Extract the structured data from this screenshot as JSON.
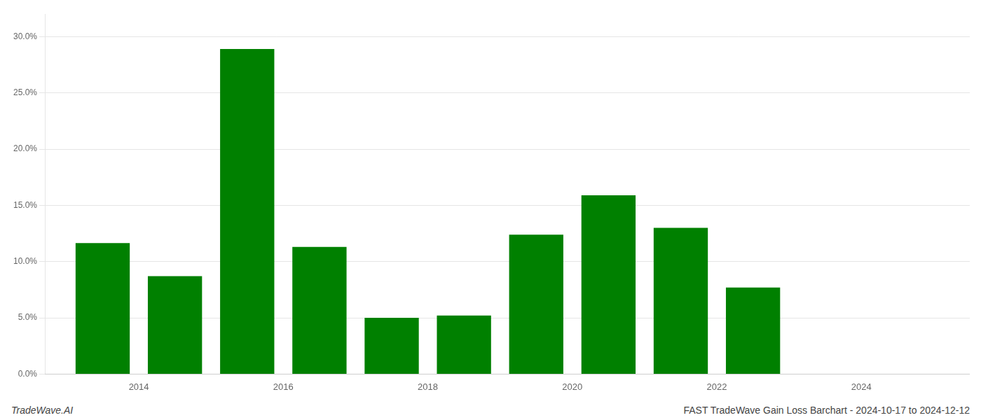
{
  "chart_data": {
    "type": "bar",
    "x": [
      2013,
      2014,
      2015,
      2016,
      2017,
      2018,
      2019,
      2020,
      2021,
      2022,
      2023
    ],
    "values": [
      0.1165,
      0.087,
      0.289,
      0.113,
      0.05,
      0.052,
      0.124,
      0.159,
      0.13,
      0.077,
      0.0
    ],
    "color": "#008000",
    "xlim": [
      2012.2,
      2025.0
    ],
    "xticks": [
      {
        "value": 2013.5,
        "label": "2014"
      },
      {
        "value": 2015.5,
        "label": "2016"
      },
      {
        "value": 2017.5,
        "label": "2018"
      },
      {
        "value": 2019.5,
        "label": "2020"
      },
      {
        "value": 2021.5,
        "label": "2022"
      },
      {
        "value": 2023.5,
        "label": "2024"
      }
    ],
    "ylim": [
      0.0,
      0.32
    ],
    "yticks": [
      {
        "value": 0.0,
        "label": "0.0%"
      },
      {
        "value": 0.05,
        "label": "5.0%"
      },
      {
        "value": 0.1,
        "label": "10.0%"
      },
      {
        "value": 0.15,
        "label": "15.0%"
      },
      {
        "value": 0.2,
        "label": "20.0%"
      },
      {
        "value": 0.25,
        "label": "25.0%"
      },
      {
        "value": 0.3,
        "label": "30.0%"
      }
    ],
    "grid": true,
    "annotations": [
      "TradeWave.AI",
      "FAST TradeWave Gain Loss Barchart - 2024-10-17 to 2024-12-12"
    ]
  }
}
